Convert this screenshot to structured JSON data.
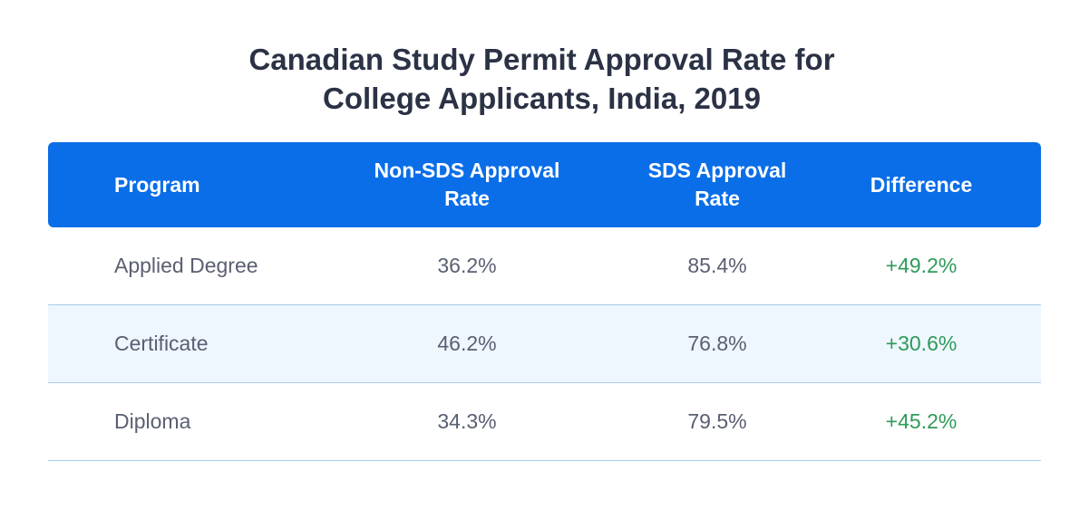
{
  "title": {
    "line1": "Canadian Study Permit Approval Rate for",
    "line2": "College Applicants, India, 2019"
  },
  "colors": {
    "header_bg": "#0a6ee8",
    "header_text": "#ffffff",
    "title_text": "#2b3245",
    "body_text": "#5a6072",
    "positive_diff": "#2f9a5a",
    "alt_row_bg": "#eef6fe",
    "row_divider": "#a9cbef"
  },
  "chart_data": {
    "type": "table",
    "title": "Canadian Study Permit Approval Rate for College Applicants, India, 2019",
    "columns": [
      "Program",
      "Non-SDS Approval Rate",
      "SDS Approval Rate",
      "Difference"
    ],
    "header_lines": [
      [
        "Program"
      ],
      [
        "Non-SDS Approval",
        "Rate"
      ],
      [
        "SDS Approval",
        "Rate"
      ],
      [
        "Difference"
      ]
    ],
    "rows": [
      [
        "Applied Degree",
        "36.2%",
        "85.4%",
        "+49.2%"
      ],
      [
        "Certificate",
        "46.2%",
        "76.8%",
        "+30.6%"
      ],
      [
        "Diploma",
        "34.3%",
        "79.5%",
        "+45.2%"
      ]
    ]
  }
}
